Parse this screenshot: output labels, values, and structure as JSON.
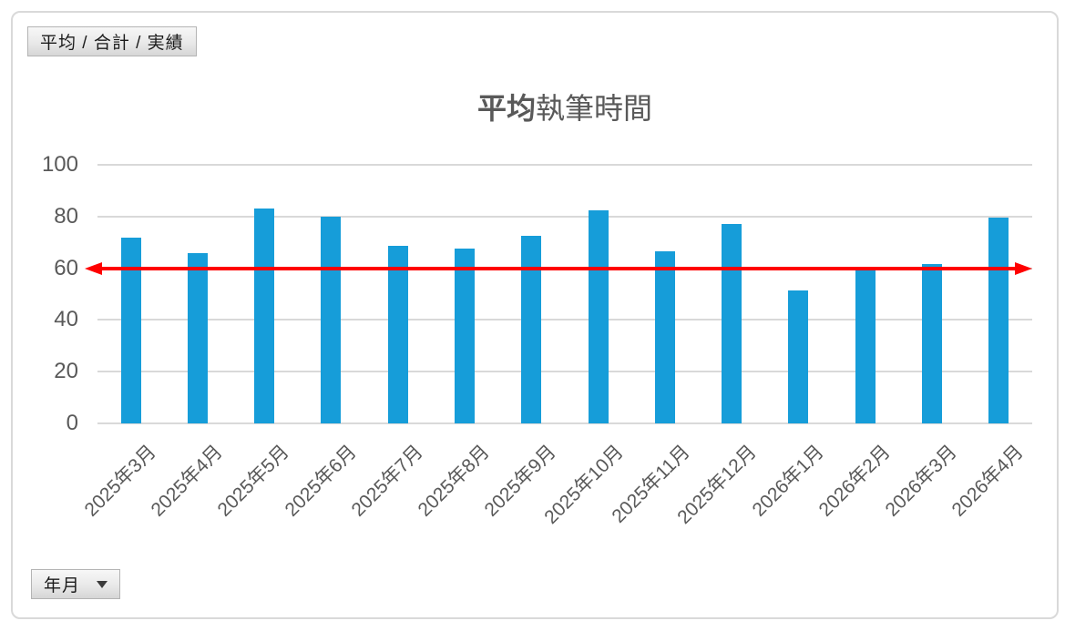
{
  "window": {
    "background": "#FFFFFF",
    "frame_border_color": "#D9D9D9"
  },
  "pivot_buttons": {
    "series_field_label": "平均 / 合計 / 実績",
    "axis_field_label": "年月",
    "dropdown_icon": "dropdown-triangle"
  },
  "chart_data": {
    "type": "bar",
    "title": {
      "bold_part": "平均",
      "regular_part": "執筆時間",
      "full": "平均執筆時間"
    },
    "categories": [
      "2025年3月",
      "2025年4月",
      "2025年5月",
      "2025年6月",
      "2025年7月",
      "2025年8月",
      "2025年9月",
      "2025年10月",
      "2025年11月",
      "2025年12月",
      "2026年1月",
      "2026年2月",
      "2026年3月",
      "2026年4月"
    ],
    "values": [
      72,
      66,
      83,
      80,
      68.5,
      67.5,
      72.5,
      82.5,
      66.5,
      77,
      51.5,
      60,
      61.5,
      79.5
    ],
    "ylim": [
      0,
      100
    ],
    "yticks": [
      0,
      20,
      40,
      60,
      80,
      100
    ],
    "target_line": {
      "value": 60,
      "color": "#FF0000",
      "arrows": "both-ends"
    },
    "bar_color": "#169DD9",
    "gridline_color": "#D9D9D9",
    "axis_text_color": "#595959",
    "grid": "horizontal-only",
    "legend": "none"
  }
}
